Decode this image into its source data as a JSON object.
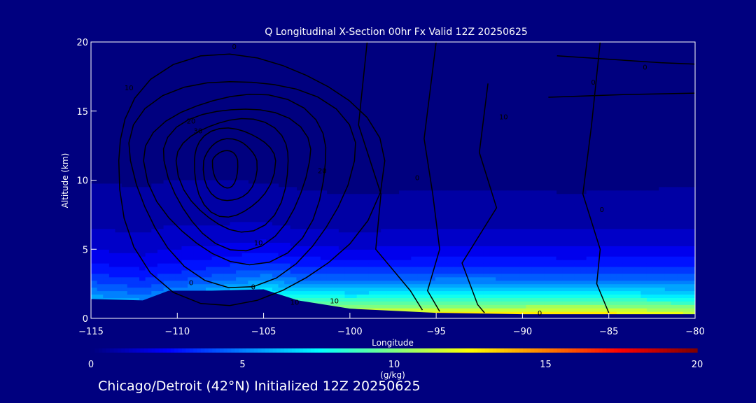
{
  "chart_data": {
    "type": "heatmap",
    "title": "Q Longitudinal X-Section 00hr  Fx Valid 12Z 20250625",
    "xlabel": "Longitude",
    "ylabel": "Altitude (km)",
    "xlim": [
      -115,
      -80
    ],
    "ylim": [
      0,
      20
    ],
    "x_ticks": [
      -115,
      -110,
      -105,
      -100,
      -95,
      -90,
      -85,
      -80
    ],
    "y_ticks": [
      0,
      5,
      10,
      15,
      20
    ],
    "colorbar": {
      "label": "(g/kg)",
      "range": [
        0,
        20
      ],
      "ticks": [
        0,
        5,
        10,
        15,
        20
      ],
      "colormap": "jet"
    },
    "terrain_km": [
      {
        "lon": -115,
        "alt": 1.4
      },
      {
        "lon": -112,
        "alt": 1.3
      },
      {
        "lon": -110.5,
        "alt": 2.0
      },
      {
        "lon": -108,
        "alt": 2.0
      },
      {
        "lon": -105,
        "alt": 2.1
      },
      {
        "lon": -103,
        "alt": 1.3
      },
      {
        "lon": -100,
        "alt": 0.7
      },
      {
        "lon": -95,
        "alt": 0.4
      },
      {
        "lon": -90,
        "alt": 0.3
      },
      {
        "lon": -85,
        "alt": 0.3
      },
      {
        "lon": -80,
        "alt": 0.3
      }
    ],
    "q_profile_by_longitude": [
      {
        "lon": -115,
        "surface_q": 6,
        "scale_height_km": 3.0
      },
      {
        "lon": -110,
        "surface_q": 5,
        "scale_height_km": 3.0
      },
      {
        "lon": -105,
        "surface_q": 7,
        "scale_height_km": 2.6
      },
      {
        "lon": -100,
        "surface_q": 11,
        "scale_height_km": 2.4
      },
      {
        "lon": -95,
        "surface_q": 12.5,
        "scale_height_km": 2.5
      },
      {
        "lon": -90,
        "surface_q": 13,
        "scale_height_km": 2.5
      },
      {
        "lon": -87,
        "surface_q": 13.5,
        "scale_height_km": 2.4
      },
      {
        "lon": -85,
        "surface_q": 13,
        "scale_height_km": 2.5
      },
      {
        "lon": -80,
        "surface_q": 12,
        "scale_height_km": 2.6
      }
    ],
    "contour_labels": [
      {
        "text": "10",
        "lon": -112.8,
        "alt": 16.5
      },
      {
        "text": "20",
        "lon": -109.2,
        "alt": 14.1
      },
      {
        "text": "30",
        "lon": -108.8,
        "alt": 13.4
      },
      {
        "text": "0",
        "lon": -106.7,
        "alt": 19.5
      },
      {
        "text": "10",
        "lon": -103.2,
        "alt": 1.0
      },
      {
        "text": "10",
        "lon": -105.3,
        "alt": 5.3
      },
      {
        "text": "20",
        "lon": -101.6,
        "alt": 10.5
      },
      {
        "text": "0",
        "lon": -109.2,
        "alt": 2.4
      },
      {
        "text": "0",
        "lon": -105.6,
        "alt": 2.1
      },
      {
        "text": "10",
        "lon": -100.9,
        "alt": 1.1
      },
      {
        "text": "0",
        "lon": -96.1,
        "alt": 10.0
      },
      {
        "text": "10",
        "lon": -91.1,
        "alt": 14.4
      },
      {
        "text": "0",
        "lon": -82.9,
        "alt": 18.0
      },
      {
        "text": "0",
        "lon": -85.9,
        "alt": 16.9
      },
      {
        "text": "0",
        "lon": -85.4,
        "alt": 7.7
      },
      {
        "text": "0",
        "lon": -89.0,
        "alt": 0.2
      }
    ]
  },
  "footer": {
    "caption": "Chicago/Detroit (42°N) Initialized 12Z 20250625"
  }
}
